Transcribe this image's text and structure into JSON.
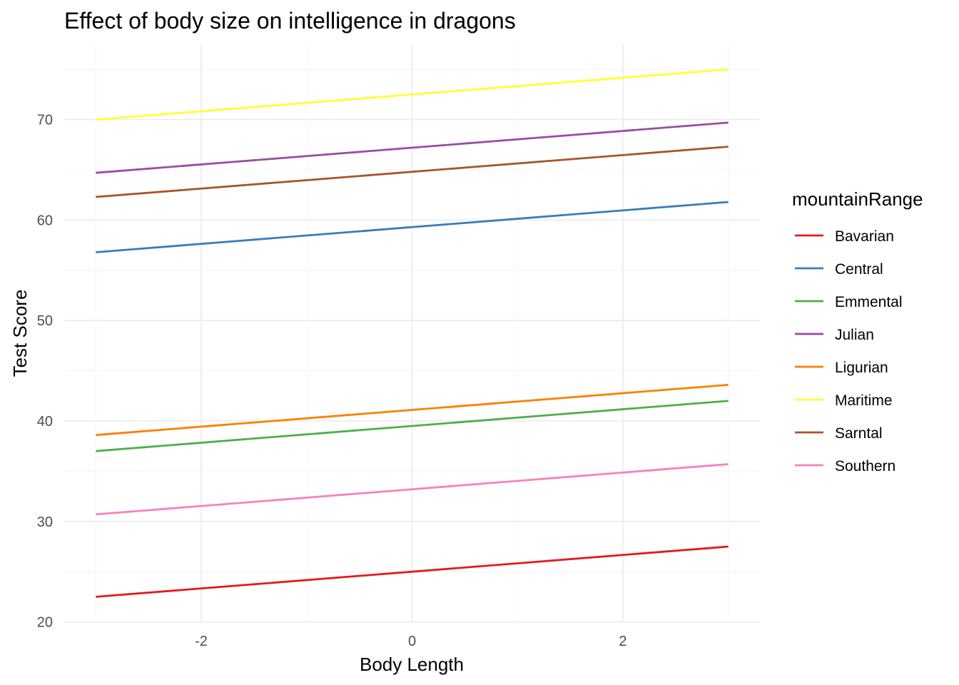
{
  "chart_data": {
    "type": "line",
    "title": "Effect of body size on intelligence in dragons",
    "xlabel": "Body Length",
    "ylabel": "Test Score",
    "xlim": [
      -3.3,
      3.3
    ],
    "ylim": [
      19.9,
      77.5
    ],
    "x_ticks": [
      -2,
      0,
      2
    ],
    "x_tick_labels": [
      "-2",
      "0",
      "2"
    ],
    "y_ticks": [
      20,
      30,
      40,
      50,
      60,
      70
    ],
    "y_tick_labels": [
      "20",
      "30",
      "40",
      "50",
      "60",
      "70"
    ],
    "grid": true,
    "legend_title": "mountainRange",
    "legend_position": "right",
    "series": [
      {
        "name": "Bavarian",
        "color": "#E41A1C",
        "x": [
          -3,
          3
        ],
        "y": [
          22.5,
          27.5
        ]
      },
      {
        "name": "Central",
        "color": "#377EB8",
        "x": [
          -3,
          3
        ],
        "y": [
          56.8,
          61.8
        ]
      },
      {
        "name": "Emmental",
        "color": "#4DAF4A",
        "x": [
          -3,
          3
        ],
        "y": [
          37.0,
          42.0
        ]
      },
      {
        "name": "Julian",
        "color": "#984EA3",
        "x": [
          -3,
          3
        ],
        "y": [
          64.7,
          69.7
        ]
      },
      {
        "name": "Ligurian",
        "color": "#FF7F00",
        "x": [
          -3,
          3
        ],
        "y": [
          38.6,
          43.6
        ]
      },
      {
        "name": "Maritime",
        "color": "#FFFF33",
        "x": [
          -3,
          3
        ],
        "y": [
          70.0,
          75.0
        ]
      },
      {
        "name": "Sarntal",
        "color": "#A65628",
        "x": [
          -3,
          3
        ],
        "y": [
          62.3,
          67.3
        ]
      },
      {
        "name": "Southern",
        "color": "#F781BF",
        "x": [
          -3,
          3
        ],
        "y": [
          30.7,
          35.7
        ]
      }
    ]
  }
}
